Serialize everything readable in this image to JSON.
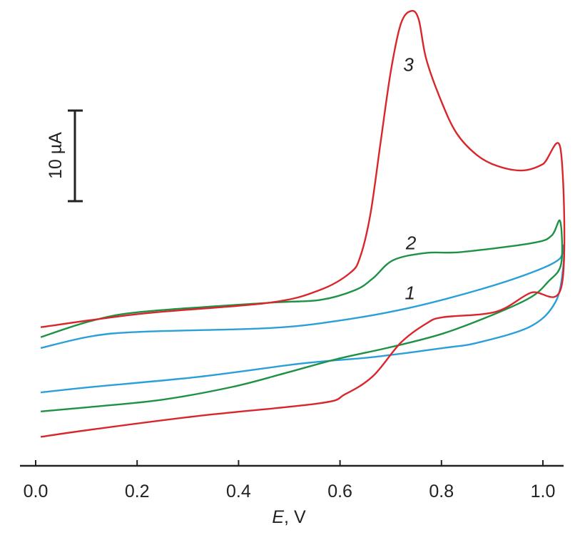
{
  "chart_data": {
    "type": "line",
    "title": "",
    "xlabel_italic": "E",
    "xlabel_rest": ", V",
    "ylabel": "",
    "xlim": [
      -0.03,
      1.04
    ],
    "ylim": [
      0,
      51.4
    ],
    "xticks": [
      0.0,
      0.2,
      0.4,
      0.6,
      0.8,
      1.0
    ],
    "xtick_labels": [
      "0.0",
      "0.2",
      "0.4",
      "0.6",
      "0.8",
      "1.0"
    ],
    "grid": false,
    "scale_bar": {
      "label": "10 µA",
      "value": 10,
      "from": 29.1
    },
    "series": [
      {
        "name": "1",
        "color": "#2a9fd8",
        "label_at": [
          0.738,
          19.1
        ],
        "points": [
          [
            0.01,
            13.0
          ],
          [
            0.11,
            14.3
          ],
          [
            0.21,
            14.8
          ],
          [
            0.46,
            15.2
          ],
          [
            0.595,
            16.0
          ],
          [
            0.734,
            17.4
          ],
          [
            0.872,
            19.4
          ],
          [
            0.976,
            21.3
          ],
          [
            1.032,
            22.8
          ],
          [
            1.04,
            24.3
          ],
          [
            1.04,
            21.9
          ],
          [
            1.025,
            18.1
          ],
          [
            0.976,
            15.4
          ],
          [
            0.872,
            13.6
          ],
          [
            0.803,
            13.0
          ],
          [
            0.665,
            12.0
          ],
          [
            0.526,
            11.3
          ],
          [
            0.318,
            9.8
          ],
          [
            0.11,
            8.7
          ],
          [
            0.01,
            8.1
          ]
        ]
      },
      {
        "name": "2",
        "color": "#1e9244",
        "label_at": [
          0.74,
          24.6
        ],
        "points": [
          [
            0.01,
            14.2
          ],
          [
            0.11,
            16.0
          ],
          [
            0.21,
            17.0
          ],
          [
            0.46,
            18.0
          ],
          [
            0.56,
            18.3
          ],
          [
            0.63,
            19.4
          ],
          [
            0.665,
            20.7
          ],
          [
            0.705,
            22.7
          ],
          [
            0.77,
            23.5
          ],
          [
            0.84,
            23.6
          ],
          [
            0.98,
            24.6
          ],
          [
            1.017,
            25.4
          ],
          [
            1.034,
            27.0
          ],
          [
            1.036,
            22.3
          ],
          [
            1.01,
            20.3
          ],
          [
            0.976,
            18.6
          ],
          [
            0.907,
            16.8
          ],
          [
            0.803,
            14.6
          ],
          [
            0.7,
            13.1
          ],
          [
            0.595,
            11.8
          ],
          [
            0.49,
            10.2
          ],
          [
            0.387,
            8.7
          ],
          [
            0.25,
            7.3
          ],
          [
            0.11,
            6.5
          ],
          [
            0.01,
            6.0
          ]
        ]
      },
      {
        "name": "3",
        "color": "#d9262c",
        "label_at": [
          0.735,
          44.3
        ],
        "points": [
          [
            0.01,
            15.3
          ],
          [
            0.21,
            16.8
          ],
          [
            0.46,
            18.0
          ],
          [
            0.56,
            19.4
          ],
          [
            0.62,
            21.3
          ],
          [
            0.64,
            23.1
          ],
          [
            0.66,
            27.8
          ],
          [
            0.68,
            35.7
          ],
          [
            0.7,
            43.5
          ],
          [
            0.72,
            48.8
          ],
          [
            0.74,
            50.2
          ],
          [
            0.755,
            49.3
          ],
          [
            0.77,
            44.9
          ],
          [
            0.8,
            40.2
          ],
          [
            0.83,
            36.7
          ],
          [
            0.87,
            34.3
          ],
          [
            0.91,
            33.1
          ],
          [
            0.96,
            32.6
          ],
          [
            1.0,
            33.3
          ],
          [
            1.035,
            34.9
          ],
          [
            1.037,
            19.9
          ],
          [
            0.976,
            19.1
          ],
          [
            0.907,
            17.0
          ],
          [
            0.803,
            16.4
          ],
          [
            0.77,
            15.7
          ],
          [
            0.72,
            13.6
          ],
          [
            0.665,
            9.9
          ],
          [
            0.61,
            7.9
          ],
          [
            0.56,
            6.9
          ],
          [
            0.32,
            5.5
          ],
          [
            0.11,
            4.0
          ],
          [
            0.01,
            3.2
          ]
        ]
      }
    ]
  }
}
